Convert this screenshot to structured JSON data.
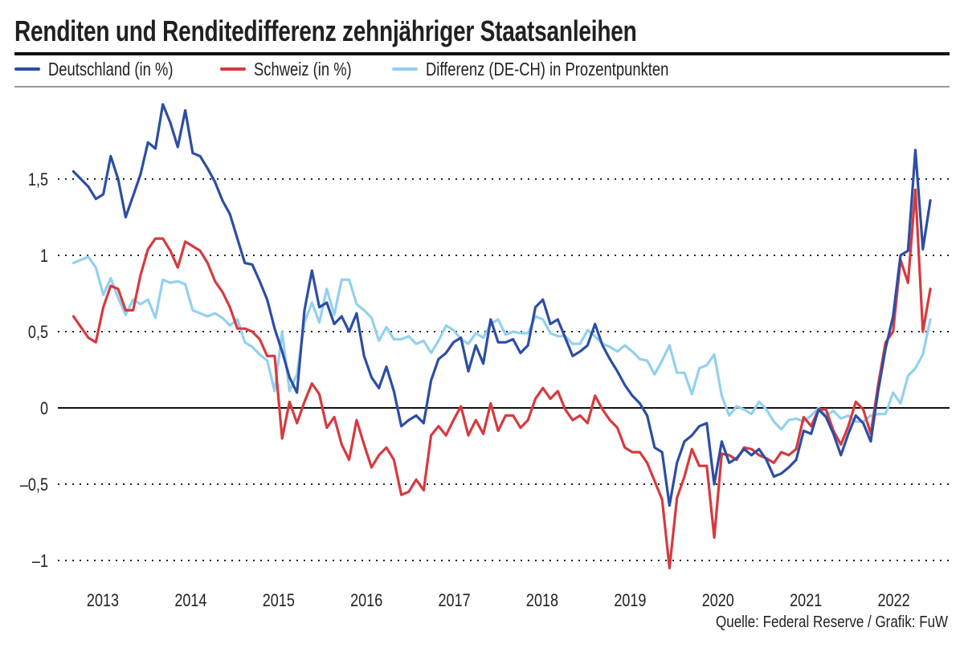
{
  "title": "Renditen und Renditedifferenz zehnjähriger Staatsanleihen",
  "source": "Quelle: Federal Reserve / Grafik: FuW",
  "chart_data": {
    "type": "line",
    "title": "Renditen und Renditedifferenz zehnjähriger Staatsanleihen",
    "xlabel": "",
    "ylabel": "",
    "x_start": "2012-11",
    "x_frequency": "monthly",
    "x_ticks": [
      "2013",
      "2014",
      "2015",
      "2016",
      "2017",
      "2018",
      "2019",
      "2020",
      "2021",
      "2022"
    ],
    "ylim": [
      -1.1,
      2.0
    ],
    "y_ticks": [
      {
        "value": 1.5,
        "label": "1,5"
      },
      {
        "value": 1,
        "label": "1"
      },
      {
        "value": 0.5,
        "label": "0,5"
      },
      {
        "value": 0,
        "label": "0"
      },
      {
        "value": -0.5,
        "label": "–0,5"
      },
      {
        "value": -1,
        "label": "–1"
      }
    ],
    "grid": "horizontal dotted",
    "legend_position": "top-left",
    "series": [
      {
        "name": "Deutschland (in %)",
        "color": "#2c4ea3",
        "values": [
          1.55,
          1.5,
          1.45,
          1.37,
          1.4,
          1.65,
          1.5,
          1.25,
          1.39,
          1.53,
          1.74,
          1.7,
          1.99,
          1.87,
          1.71,
          1.95,
          1.67,
          1.65,
          1.57,
          1.48,
          1.36,
          1.27,
          1.11,
          0.95,
          0.94,
          0.83,
          0.71,
          0.52,
          0.37,
          0.2,
          0.1,
          0.64,
          0.9,
          0.66,
          0.69,
          0.55,
          0.6,
          0.5,
          0.62,
          0.34,
          0.2,
          0.13,
          0.27,
          0.11,
          -0.12,
          -0.08,
          -0.05,
          -0.1,
          0.18,
          0.32,
          0.36,
          0.43,
          0.46,
          0.24,
          0.41,
          0.29,
          0.58,
          0.43,
          0.43,
          0.45,
          0.36,
          0.41,
          0.66,
          0.71,
          0.55,
          0.58,
          0.46,
          0.34,
          0.37,
          0.41,
          0.55,
          0.41,
          0.32,
          0.24,
          0.15,
          0.08,
          0.03,
          -0.05,
          -0.26,
          -0.29,
          -0.64,
          -0.36,
          -0.22,
          -0.18,
          -0.12,
          -0.1,
          -0.5,
          -0.22,
          -0.36,
          -0.33,
          -0.27,
          -0.31,
          -0.27,
          -0.34,
          -0.45,
          -0.43,
          -0.39,
          -0.34,
          -0.15,
          -0.17,
          -0.01,
          -0.06,
          -0.17,
          -0.31,
          -0.17,
          -0.05,
          -0.1,
          -0.22,
          0.11,
          0.39,
          0.6,
          1.0,
          1.03,
          1.69,
          1.04,
          1.36
        ]
      },
      {
        "name": "Schweiz (in %)",
        "color": "#d63a3f",
        "values": [
          0.6,
          0.53,
          0.46,
          0.43,
          0.66,
          0.8,
          0.78,
          0.64,
          0.64,
          0.87,
          1.04,
          1.11,
          1.11,
          1.03,
          0.92,
          1.09,
          1.06,
          1.03,
          0.95,
          0.83,
          0.76,
          0.66,
          0.52,
          0.52,
          0.5,
          0.45,
          0.34,
          0.34,
          -0.2,
          0.04,
          -0.1,
          0.04,
          0.16,
          0.09,
          -0.13,
          -0.06,
          -0.24,
          -0.34,
          -0.08,
          -0.24,
          -0.39,
          -0.31,
          -0.26,
          -0.34,
          -0.57,
          -0.55,
          -0.47,
          -0.54,
          -0.18,
          -0.12,
          -0.18,
          -0.08,
          0.01,
          -0.18,
          -0.08,
          -0.17,
          0.03,
          -0.15,
          -0.05,
          -0.05,
          -0.13,
          -0.08,
          0.06,
          0.13,
          0.06,
          0.11,
          -0.01,
          -0.08,
          -0.05,
          -0.1,
          0.08,
          -0.01,
          -0.08,
          -0.13,
          -0.26,
          -0.29,
          -0.29,
          -0.36,
          -0.48,
          -0.6,
          -1.05,
          -0.59,
          -0.45,
          -0.27,
          -0.38,
          -0.38,
          -0.85,
          -0.3,
          -0.31,
          -0.34,
          -0.26,
          -0.27,
          -0.31,
          -0.33,
          -0.36,
          -0.29,
          -0.31,
          -0.27,
          -0.06,
          -0.12,
          -0.01,
          -0.01,
          -0.15,
          -0.24,
          -0.12,
          0.04,
          -0.01,
          -0.17,
          0.15,
          0.43,
          0.5,
          0.97,
          0.82,
          1.43,
          0.5,
          0.78
        ]
      },
      {
        "name": "Differenz (DE-CH) in Prozentpunkten",
        "color": "#93d0f0",
        "values": [
          0.95,
          0.97,
          0.99,
          0.92,
          0.74,
          0.85,
          0.72,
          0.61,
          0.71,
          0.68,
          0.71,
          0.59,
          0.84,
          0.82,
          0.83,
          0.81,
          0.64,
          0.62,
          0.6,
          0.62,
          0.59,
          0.54,
          0.58,
          0.43,
          0.4,
          0.35,
          0.31,
          0.11,
          0.5,
          0.11,
          0.22,
          0.56,
          0.69,
          0.56,
          0.78,
          0.61,
          0.84,
          0.84,
          0.68,
          0.64,
          0.59,
          0.44,
          0.53,
          0.45,
          0.45,
          0.47,
          0.42,
          0.44,
          0.36,
          0.44,
          0.54,
          0.51,
          0.45,
          0.42,
          0.49,
          0.46,
          0.55,
          0.58,
          0.48,
          0.5,
          0.49,
          0.49,
          0.6,
          0.58,
          0.49,
          0.47,
          0.47,
          0.42,
          0.42,
          0.51,
          0.47,
          0.42,
          0.4,
          0.37,
          0.41,
          0.37,
          0.32,
          0.31,
          0.22,
          0.31,
          0.41,
          0.23,
          0.23,
          0.09,
          0.26,
          0.28,
          0.35,
          0.08,
          -0.05,
          0.01,
          -0.01,
          -0.04,
          0.04,
          -0.01,
          -0.09,
          -0.14,
          -0.08,
          -0.07,
          -0.09,
          -0.05,
          0.0,
          -0.05,
          -0.02,
          -0.07,
          -0.05,
          -0.09,
          -0.09,
          -0.05,
          -0.04,
          -0.04,
          0.1,
          0.03,
          0.21,
          0.26,
          0.35,
          0.58
        ]
      }
    ]
  }
}
